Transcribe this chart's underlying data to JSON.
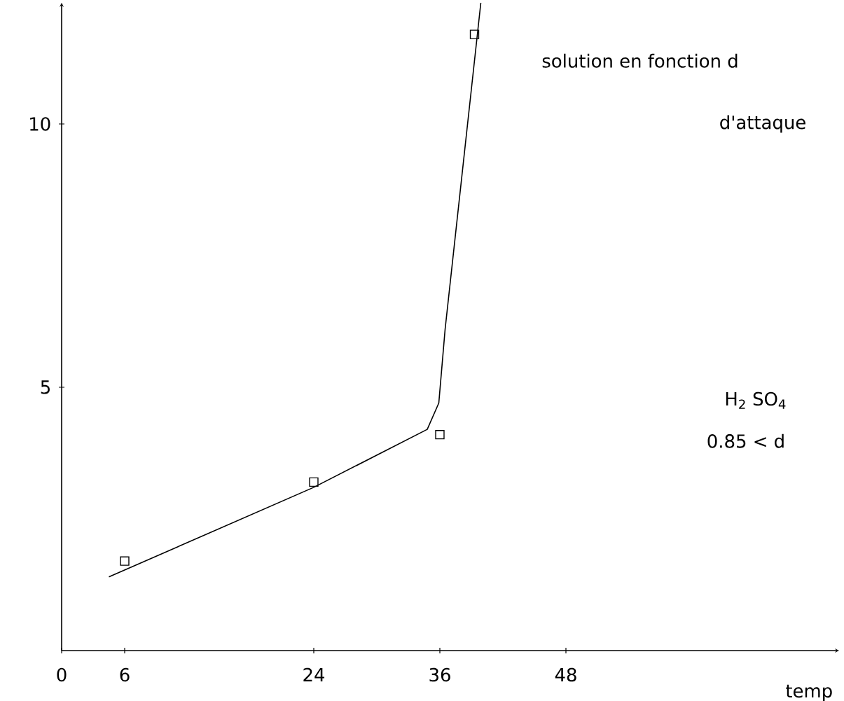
{
  "chart_data": {
    "type": "scatter",
    "xlabel": "temp",
    "annotations": [
      "solution en fonction d",
      "d'attaque",
      "H$_{2}$ SO$_{4}$",
      "0.85 < d"
    ],
    "xlim": [
      0,
      74
    ],
    "ylim": [
      0,
      12.3
    ],
    "xticks": [
      0,
      6,
      24,
      36,
      48
    ],
    "yticks": [
      5,
      10
    ],
    "grid": false,
    "series": [
      {
        "marker": "square",
        "color": "#000000",
        "x": [
          6,
          24,
          36,
          39.3
        ],
        "values": [
          1.7,
          3.2,
          4.1,
          11.7
        ]
      },
      {
        "type": "line",
        "marker": "none",
        "line_style": "solid",
        "color": "#000000",
        "x": [
          4.5,
          24,
          34.8,
          35.9,
          36.5,
          39.9
        ],
        "values": [
          1.4,
          3.1,
          4.2,
          4.7,
          6.1,
          12.3
        ]
      }
    ]
  }
}
